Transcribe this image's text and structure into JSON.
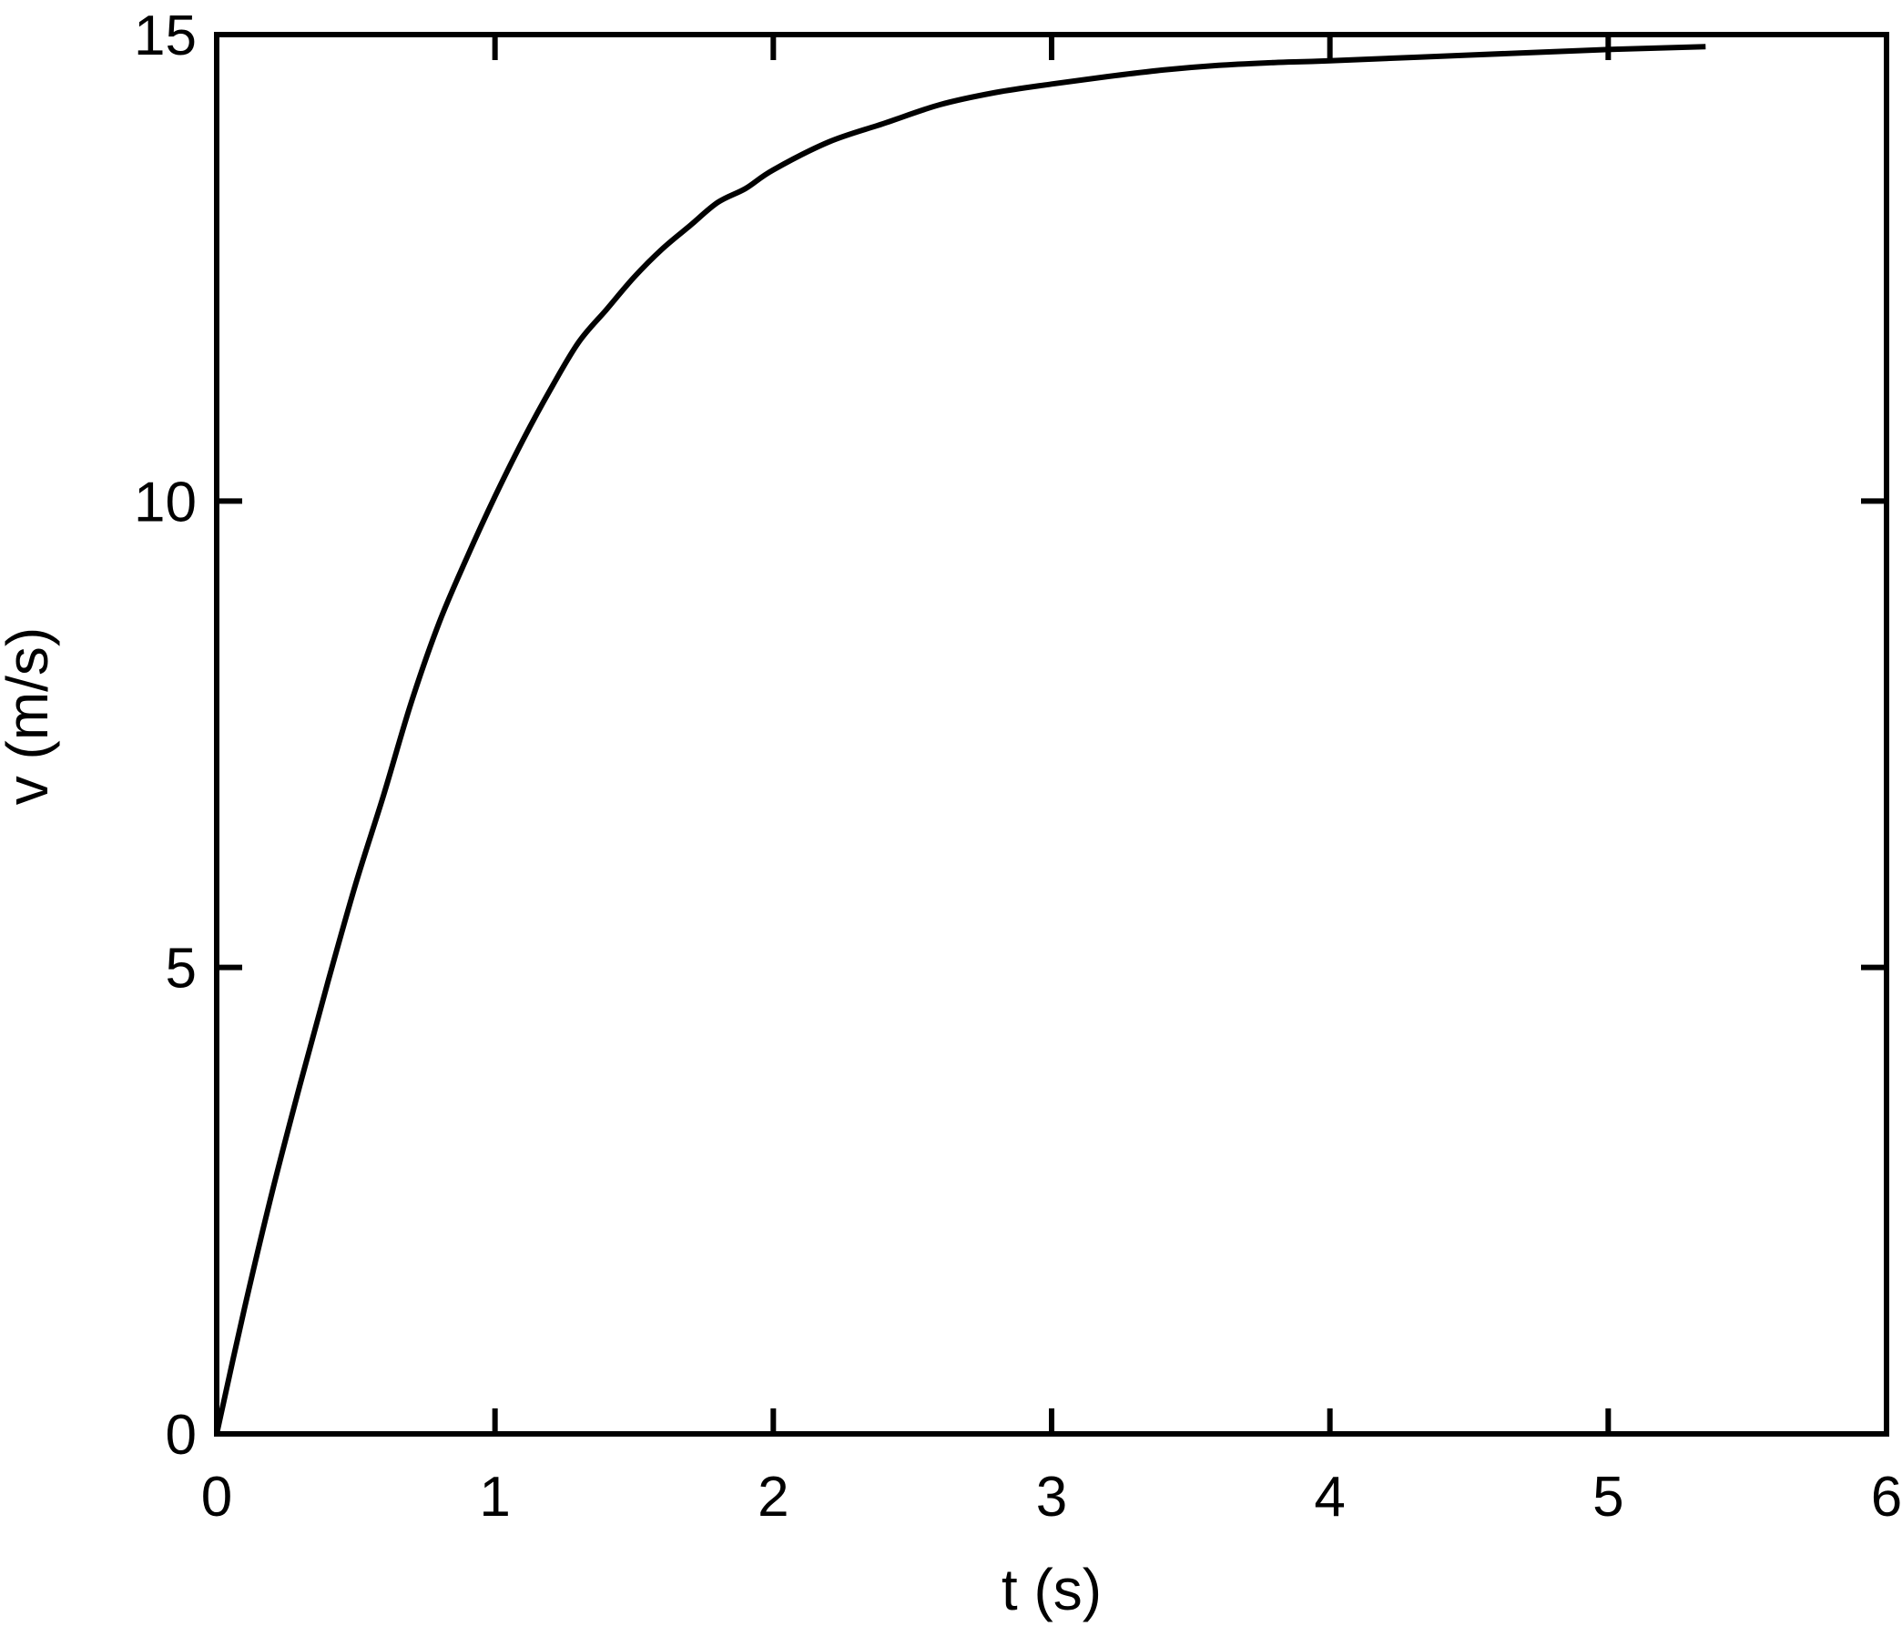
{
  "chart_data": {
    "type": "line",
    "title": "",
    "xlabel": "t (s)",
    "ylabel": "v (m/s)",
    "xlim": [
      0,
      6
    ],
    "ylim": [
      0,
      15
    ],
    "xticks": [
      "0",
      "1",
      "2",
      "3",
      "4",
      "5",
      "6"
    ],
    "yticks": [
      "0",
      "5",
      "10",
      "15"
    ],
    "grid": false,
    "legend": "none",
    "colors": {
      "line": "#000000",
      "axes": "#000000",
      "background": "#ffffff"
    },
    "series": [
      {
        "x": [
          0,
          0.1,
          0.2,
          0.3,
          0.4,
          0.5,
          0.6,
          0.7,
          0.8,
          0.9,
          1.0,
          1.1,
          1.2,
          1.3,
          1.4,
          1.5,
          1.6,
          1.7,
          1.8,
          1.9,
          2.0,
          2.2,
          2.4,
          2.6,
          2.8,
          3.0,
          3.2,
          3.4,
          3.6,
          3.8,
          4.0,
          4.5,
          5.0,
          5.35
        ],
        "y": [
          0,
          1.35,
          2.6,
          3.75,
          4.85,
          5.9,
          6.85,
          7.85,
          8.7,
          9.4,
          10.05,
          10.65,
          11.2,
          11.7,
          12.05,
          12.4,
          12.7,
          12.95,
          13.2,
          13.35,
          13.55,
          13.85,
          14.05,
          14.25,
          14.38,
          14.47,
          14.55,
          14.62,
          14.67,
          14.7,
          14.72,
          14.78,
          14.84,
          14.87
        ]
      }
    ]
  }
}
